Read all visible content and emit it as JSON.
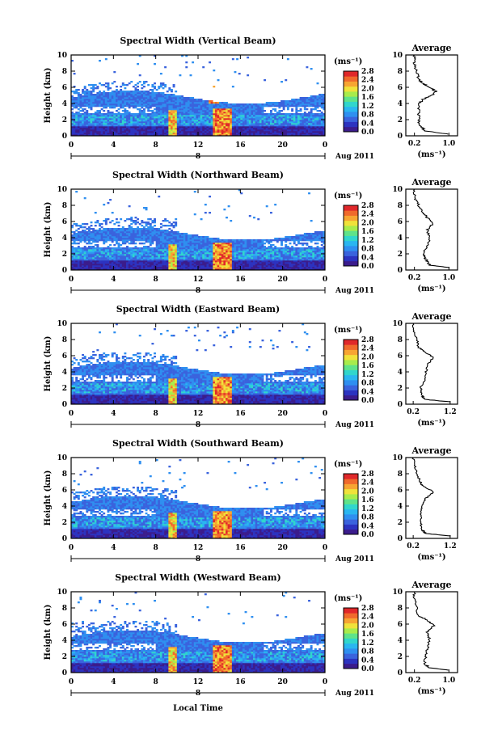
{
  "figure": {
    "xlabel": "Local Time",
    "colorbar": {
      "unit": "(ms⁻¹)",
      "ticks": [
        "0.0",
        "0.4",
        "0.8",
        "1.2",
        "1.6",
        "2.0",
        "2.4",
        "2.8"
      ],
      "colors": [
        "#3b1c8c",
        "#2c33c0",
        "#3a63dd",
        "#2f8ff0",
        "#2ab6f0",
        "#31d6cc",
        "#5fe38a",
        "#a8ec4c",
        "#f0e23a",
        "#f7a532",
        "#f06a2c",
        "#e0282a"
      ]
    }
  },
  "chart_data": [
    {
      "type": "heatmap",
      "title": "Spectral Width (Vertical Beam)",
      "ylabel": "Height (km)",
      "x_ticks": [
        "0",
        "4",
        "8",
        "12",
        "16",
        "20",
        "0"
      ],
      "y_ticks": [
        "0",
        "2",
        "4",
        "6",
        "8",
        "10"
      ],
      "xlim": [
        0,
        24
      ],
      "ylim": [
        0,
        10
      ],
      "date_labels": [
        "8",
        "Aug 2011"
      ],
      "profile": {
        "title": "Average",
        "xlabel": "(ms⁻¹)",
        "x_ticks": [
          "0.2",
          "1.0"
        ],
        "x_tick_values": [
          0.2,
          1.0
        ],
        "xlim": [
          0,
          1.2
        ],
        "y_ticks": [
          "0",
          "2",
          "4",
          "6",
          "8",
          "10"
        ],
        "points": [
          [
            1.0,
            0.2
          ],
          [
            0.45,
            0.6
          ],
          [
            0.4,
            0.9
          ],
          [
            0.32,
            1.3
          ],
          [
            0.3,
            2.0
          ],
          [
            0.3,
            3.0
          ],
          [
            0.32,
            4.0
          ],
          [
            0.4,
            4.5
          ],
          [
            0.6,
            5.0
          ],
          [
            0.7,
            5.5
          ],
          [
            0.55,
            6.0
          ],
          [
            0.4,
            6.5
          ],
          [
            0.3,
            7.0
          ],
          [
            0.25,
            8.0
          ],
          [
            0.2,
            9.0
          ],
          [
            0.2,
            10.0
          ]
        ]
      }
    },
    {
      "type": "heatmap",
      "title": "Spectral Width (Northward Beam)",
      "ylabel": "Height (km)",
      "x_ticks": [
        "0",
        "4",
        "8",
        "12",
        "16",
        "20",
        "0"
      ],
      "y_ticks": [
        "0",
        "2",
        "4",
        "6",
        "8",
        "10"
      ],
      "xlim": [
        0,
        24
      ],
      "ylim": [
        0,
        10
      ],
      "date_labels": [
        "8",
        "Aug 2011"
      ],
      "profile": {
        "title": "Average",
        "xlabel": "(ms⁻¹)",
        "x_ticks": [
          "0.2",
          "1.0"
        ],
        "x_tick_values": [
          0.2,
          1.0
        ],
        "xlim": [
          0,
          1.2
        ],
        "y_ticks": [
          "0",
          "2",
          "4",
          "6",
          "8",
          "10"
        ],
        "points": [
          [
            1.0,
            0.3
          ],
          [
            0.55,
            0.6
          ],
          [
            0.5,
            1.0
          ],
          [
            0.45,
            1.5
          ],
          [
            0.4,
            2.0
          ],
          [
            0.5,
            3.0
          ],
          [
            0.55,
            4.0
          ],
          [
            0.5,
            5.0
          ],
          [
            0.65,
            5.8
          ],
          [
            0.5,
            6.5
          ],
          [
            0.4,
            7.0
          ],
          [
            0.3,
            8.0
          ],
          [
            0.2,
            9.0
          ],
          [
            0.2,
            10.0
          ]
        ]
      }
    },
    {
      "type": "heatmap",
      "title": "Spectral Width (Eastward Beam)",
      "ylabel": "Height (km)",
      "x_ticks": [
        "0",
        "4",
        "8",
        "12",
        "16",
        "20",
        "0"
      ],
      "y_ticks": [
        "0",
        "2",
        "4",
        "6",
        "8",
        "10"
      ],
      "xlim": [
        0,
        24
      ],
      "ylim": [
        0,
        10
      ],
      "date_labels": [
        "8",
        "Aug 2011"
      ],
      "profile": {
        "title": "Average",
        "xlabel": "(ms⁻¹)",
        "x_ticks": [
          "0.2",
          "1.2"
        ],
        "x_tick_values": [
          0.2,
          1.2
        ],
        "xlim": [
          0,
          1.4
        ],
        "y_ticks": [
          "0",
          "2",
          "4",
          "6",
          "8",
          "10"
        ],
        "points": [
          [
            1.2,
            0.3
          ],
          [
            0.5,
            0.6
          ],
          [
            0.45,
            1.0
          ],
          [
            0.4,
            2.0
          ],
          [
            0.5,
            3.0
          ],
          [
            0.55,
            4.0
          ],
          [
            0.6,
            5.0
          ],
          [
            0.75,
            5.8
          ],
          [
            0.5,
            6.5
          ],
          [
            0.35,
            7.0
          ],
          [
            0.3,
            8.0
          ],
          [
            0.2,
            9.0
          ],
          [
            0.2,
            10.0
          ]
        ]
      }
    },
    {
      "type": "heatmap",
      "title": "Spectral Width (Southward Beam)",
      "ylabel": "Height (km)",
      "x_ticks": [
        "0",
        "4",
        "8",
        "12",
        "16",
        "20",
        "0"
      ],
      "y_ticks": [
        "0",
        "2",
        "4",
        "6",
        "8",
        "10"
      ],
      "xlim": [
        0,
        24
      ],
      "ylim": [
        0,
        10
      ],
      "date_labels": [
        "8",
        "Aug 2011"
      ],
      "profile": {
        "title": "Average",
        "xlabel": "(ms⁻¹)",
        "x_ticks": [
          "0.2",
          "1.2"
        ],
        "x_tick_values": [
          0.2,
          1.2
        ],
        "xlim": [
          0,
          1.4
        ],
        "y_ticks": [
          "0",
          "2",
          "4",
          "6",
          "8",
          "10"
        ],
        "points": [
          [
            1.2,
            0.3
          ],
          [
            0.55,
            0.6
          ],
          [
            0.45,
            1.0
          ],
          [
            0.4,
            2.0
          ],
          [
            0.4,
            3.0
          ],
          [
            0.45,
            4.0
          ],
          [
            0.55,
            5.0
          ],
          [
            0.75,
            5.8
          ],
          [
            0.45,
            6.5
          ],
          [
            0.4,
            7.0
          ],
          [
            0.3,
            8.0
          ],
          [
            0.25,
            9.0
          ],
          [
            0.2,
            10.0
          ]
        ]
      }
    },
    {
      "type": "heatmap",
      "title": "Spectral Width (Westward Beam)",
      "ylabel": "Height (km)",
      "x_ticks": [
        "0",
        "4",
        "8",
        "12",
        "16",
        "20",
        "0"
      ],
      "y_ticks": [
        "0",
        "2",
        "4",
        "6",
        "8",
        "10"
      ],
      "xlim": [
        0,
        24
      ],
      "ylim": [
        0,
        10
      ],
      "date_labels": [
        "8",
        "Aug 2011"
      ],
      "profile": {
        "title": "Average",
        "xlabel": "(ms⁻¹)",
        "x_ticks": [
          "0.2",
          "1.0"
        ],
        "x_tick_values": [
          0.2,
          1.0
        ],
        "xlim": [
          0,
          1.2
        ],
        "y_ticks": [
          "0",
          "2",
          "4",
          "6",
          "8",
          "10"
        ],
        "points": [
          [
            1.0,
            0.3
          ],
          [
            0.55,
            0.6
          ],
          [
            0.45,
            1.0
          ],
          [
            0.45,
            2.0
          ],
          [
            0.5,
            3.0
          ],
          [
            0.55,
            4.0
          ],
          [
            0.5,
            5.0
          ],
          [
            0.65,
            5.8
          ],
          [
            0.5,
            6.5
          ],
          [
            0.3,
            7.0
          ],
          [
            0.25,
            8.0
          ],
          [
            0.2,
            9.0
          ],
          [
            0.2,
            10.0
          ]
        ]
      }
    }
  ]
}
